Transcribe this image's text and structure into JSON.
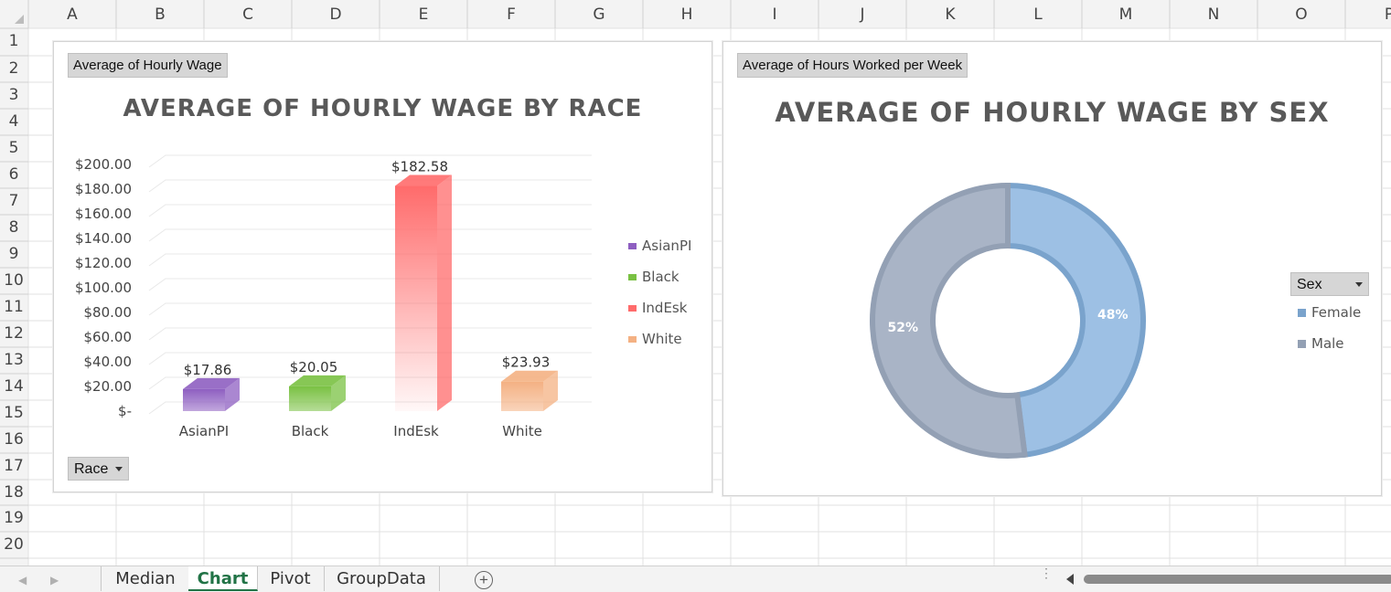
{
  "columns": [
    "A",
    "B",
    "C",
    "D",
    "E",
    "F",
    "G",
    "H",
    "I",
    "J",
    "K",
    "L",
    "M",
    "N",
    "O",
    "P"
  ],
  "rows": [
    "1",
    "2",
    "3",
    "4",
    "5",
    "6",
    "7",
    "8",
    "9",
    "10",
    "11",
    "12",
    "13",
    "14",
    "15",
    "16",
    "17",
    "18",
    "19",
    "20"
  ],
  "chart1": {
    "field_button": "Average of Hourly Wage",
    "filter_button": "Race",
    "chart_data": {
      "type": "bar",
      "title": "AVERAGE OF HOURLY WAGE BY RACE",
      "categories": [
        "AsianPI",
        "Black",
        "IndEsk",
        "White"
      ],
      "values": [
        17.86,
        20.05,
        182.58,
        23.93
      ],
      "data_labels": [
        "$17.86",
        "$20.05",
        "$182.58",
        "$23.93"
      ],
      "y_ticks": [
        "$-",
        "$20.00",
        "$40.00",
        "$60.00",
        "$80.00",
        "$100.00",
        "$120.00",
        "$140.00",
        "$160.00",
        "$180.00",
        "$200.00"
      ],
      "ylim": [
        0,
        200
      ],
      "grid": true,
      "legend_position": "right",
      "legend": [
        "AsianPI",
        "Black",
        "IndEsk",
        "White"
      ],
      "colors": [
        "#8e5fc1",
        "#7ac143",
        "#ff6b6b",
        "#f4b183"
      ]
    }
  },
  "chart2": {
    "field_button": "Average of Hours Worked per Week",
    "filter_button": "Sex",
    "chart_data": {
      "type": "pie",
      "title": "AVERAGE OF HOURLY WAGE BY SEX",
      "categories": [
        "Female",
        "Male"
      ],
      "values": [
        48,
        52
      ],
      "data_labels": [
        "48%",
        "52%"
      ],
      "legend_position": "right",
      "legend": [
        "Female",
        "Male"
      ],
      "colors": [
        "#9dc0e4",
        "#a9b4c6"
      ]
    }
  },
  "tabs": [
    "Median",
    "Chart",
    "Pivot",
    "GroupData"
  ],
  "active_tab": "Chart",
  "colors": {
    "active_tab": "#217346"
  }
}
